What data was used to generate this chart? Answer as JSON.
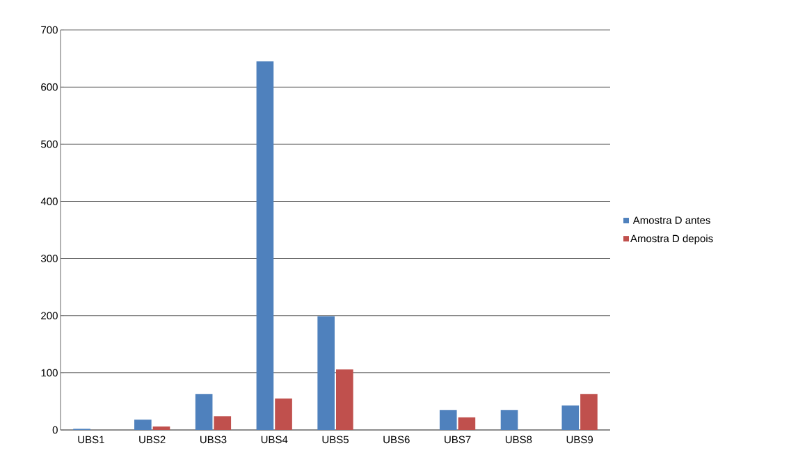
{
  "chart_data": {
    "type": "bar",
    "categories": [
      "UBS1",
      "UBS2",
      "UBS3",
      "UBS4",
      "UBS5",
      "UBS6",
      "UBS7",
      "UBS8",
      "UBS9"
    ],
    "series": [
      {
        "name": "Amostra D antes",
        "color": "#4f81bd",
        "values": [
          2,
          18,
          63,
          645,
          199,
          0,
          35,
          35,
          43
        ]
      },
      {
        "name": "Amostra D depois",
        "color": "#c0504d",
        "values": [
          0,
          6,
          24,
          55,
          106,
          0,
          22,
          0,
          63
        ]
      }
    ],
    "ylim": [
      0,
      700
    ],
    "yticks": [
      0,
      100,
      200,
      300,
      400,
      500,
      600,
      700
    ],
    "grid": "y",
    "legend": "right"
  }
}
